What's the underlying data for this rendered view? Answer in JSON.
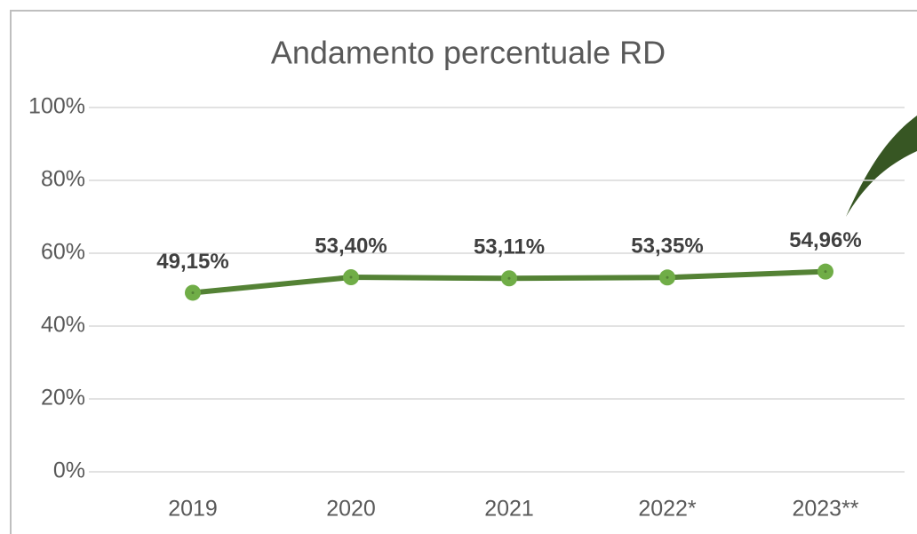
{
  "chart_data": {
    "type": "line",
    "title": "Andamento percentuale RD",
    "categories": [
      "2019",
      "2020",
      "2021",
      "2022*",
      "2023**"
    ],
    "series": [
      {
        "name": "RD",
        "color": "#548235",
        "marker_color": "#70ad47",
        "values": [
          49.15,
          53.4,
          53.11,
          53.35,
          54.96
        ],
        "value_labels": [
          "49,15%",
          "53,40%",
          "53,11%",
          "53,35%",
          "54,96%"
        ]
      }
    ],
    "ylim": [
      0,
      100
    ],
    "yticks": [
      {
        "value": 0,
        "label": "0%"
      },
      {
        "value": 20,
        "label": "20%"
      },
      {
        "value": 40,
        "label": "40%"
      },
      {
        "value": 60,
        "label": "60%"
      },
      {
        "value": 80,
        "label": "80%"
      },
      {
        "value": 100,
        "label": "100%"
      }
    ],
    "grid": true
  }
}
